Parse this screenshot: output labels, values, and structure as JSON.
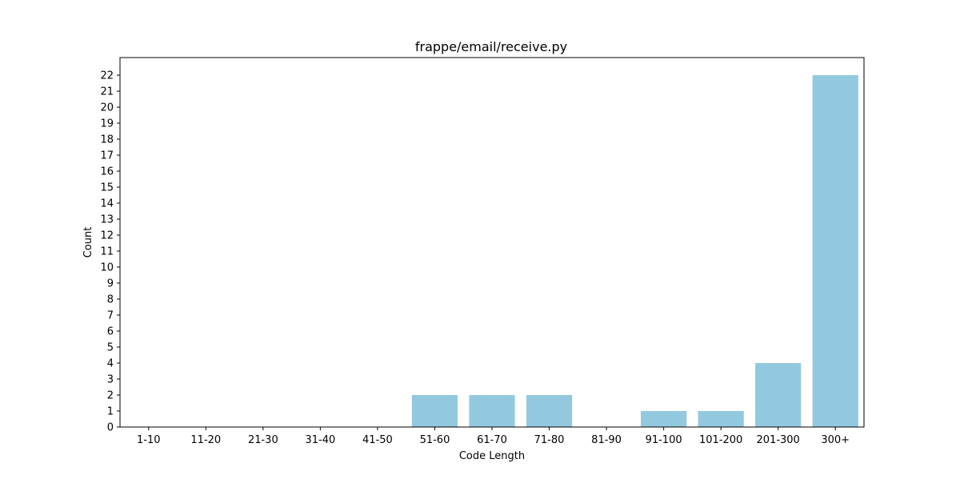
{
  "chart_data": {
    "type": "bar",
    "title": "frappe/email/receive.py",
    "xlabel": "Code Length",
    "ylabel": "Count",
    "categories": [
      "1-10",
      "11-20",
      "21-30",
      "31-40",
      "41-50",
      "51-60",
      "61-70",
      "71-80",
      "81-90",
      "91-100",
      "101-200",
      "201-300",
      "300+"
    ],
    "values": [
      0,
      0,
      0,
      0,
      0,
      2,
      2,
      2,
      0,
      1,
      1,
      4,
      22
    ],
    "ylim": [
      0,
      23.1
    ],
    "yticks": [
      0,
      1,
      2,
      3,
      4,
      5,
      6,
      7,
      8,
      9,
      10,
      11,
      12,
      13,
      14,
      15,
      16,
      17,
      18,
      19,
      20,
      21,
      22
    ],
    "bar_color": "#92c9df",
    "grid": false,
    "legend": "none"
  }
}
